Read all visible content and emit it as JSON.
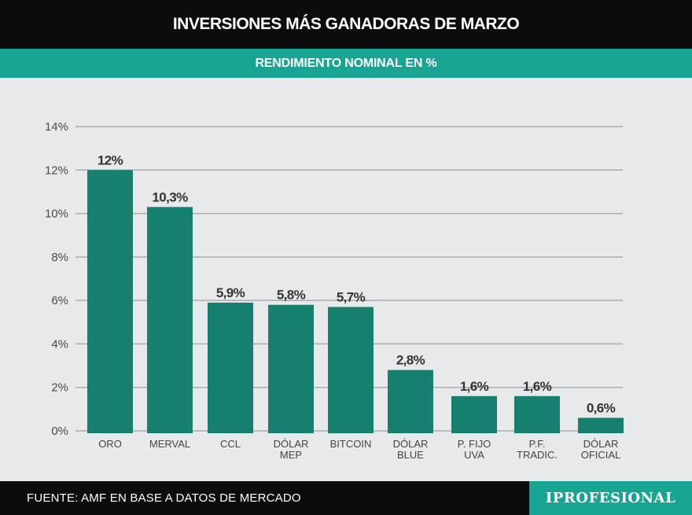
{
  "header": {
    "title": "INVERSIONES MÁS GANADORAS DE MARZO",
    "subtitle": "RENDIMIENTO NOMINAL EN %"
  },
  "footer": {
    "source": "FUENTE: AMF EN BASE A DATOS DE MERCADO",
    "logo": "IPROFESIONAL"
  },
  "colors": {
    "bar": "#167f6e",
    "accent": "#17a493",
    "background": "#e8e9ea",
    "header": "#0c0c0c"
  },
  "chart_data": {
    "type": "bar",
    "categories": [
      [
        "ORO"
      ],
      [
        "MERVAL"
      ],
      [
        "CCL"
      ],
      [
        "DÓLAR",
        "MEP"
      ],
      [
        "BITCOIN"
      ],
      [
        "DÓLAR",
        "BLUE"
      ],
      [
        "P. FIJO",
        "UVA"
      ],
      [
        "P.F.",
        "TRADIC."
      ],
      [
        "DÓLAR",
        "OFICIAL"
      ]
    ],
    "values": [
      12,
      10.3,
      5.9,
      5.8,
      5.7,
      2.8,
      1.6,
      1.6,
      0.6
    ],
    "value_labels": [
      "12%",
      "10,3%",
      "5,9%",
      "5,8%",
      "5,7%",
      "2,8%",
      "1,6%",
      "1,6%",
      "0,6%"
    ],
    "ylim": [
      0,
      14
    ],
    "yticks": [
      0,
      2,
      4,
      6,
      8,
      10,
      12,
      14
    ],
    "ytick_labels": [
      "0%",
      "2%",
      "4%",
      "6%",
      "8%",
      "10%",
      "12%",
      "14%"
    ],
    "grid": true,
    "legend": "none"
  }
}
